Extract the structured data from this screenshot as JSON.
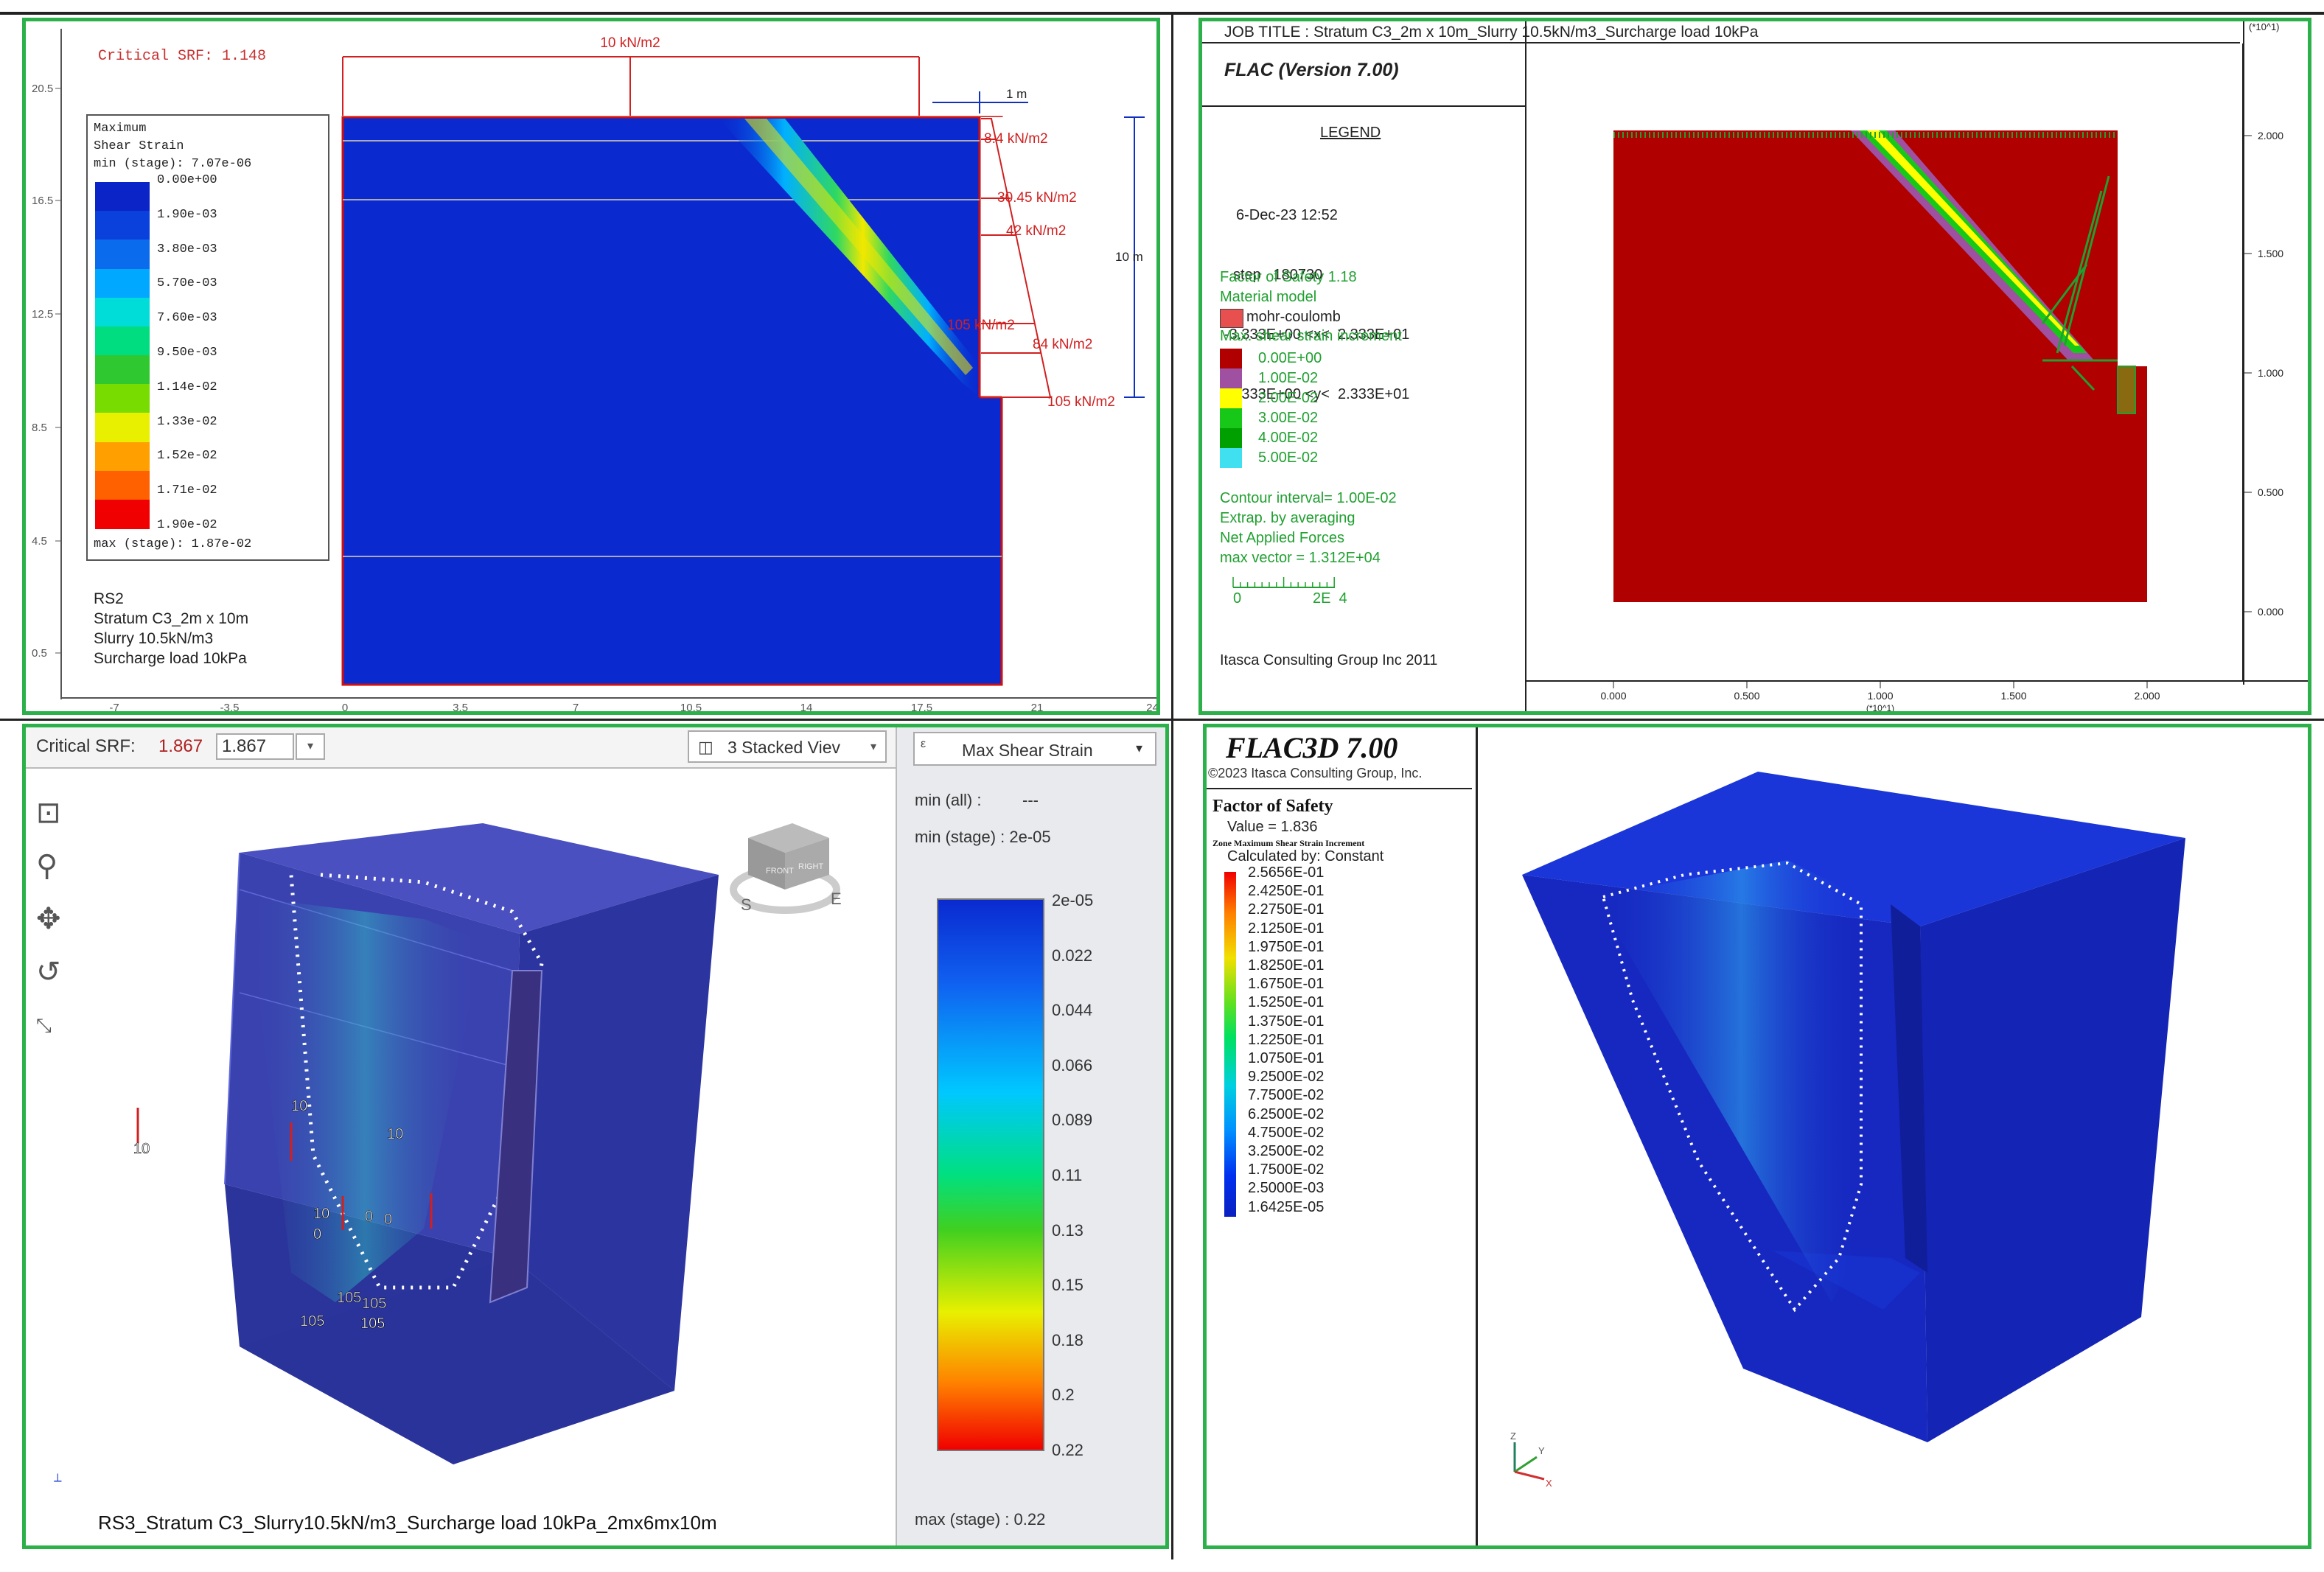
{
  "p1": {
    "critical_srf": "Critical SRF: 1.148",
    "surcharge_label": "10 kN/m2",
    "offset_label": "1 m",
    "height_label": "10 m",
    "pressure_labels": [
      "8.4 kN/m2",
      "30.45 kN/m2",
      "42 kN/m2",
      "105 kN/m2",
      "84 kN/m2",
      "105 kN/m2"
    ],
    "legend_header": [
      "Maximum",
      "Shear Strain",
      "min (stage): 7.07e-06"
    ],
    "legend_values": [
      "0.00e+00",
      "1.90e-03",
      "3.80e-03",
      "5.70e-03",
      "7.60e-03",
      "9.50e-03",
      "1.14e-02",
      "1.33e-02",
      "1.52e-02",
      "1.71e-02",
      "1.90e-02"
    ],
    "legend_colors": [
      "#0a24c8",
      "#0a40dc",
      "#0a6cec",
      "#00a8ff",
      "#00dcd8",
      "#00dc80",
      "#30c830",
      "#78dc00",
      "#e8f000",
      "#ffa000",
      "#ff6000",
      "#f00000"
    ],
    "legend_footer": "max (stage): 1.87e-02",
    "info": [
      "RS2",
      "Stratum C3_2m x 10m",
      "Slurry 10.5kN/m3",
      "Surcharge load 10kPa"
    ],
    "y_ticks": [
      "20.5",
      "16.5",
      "12.5",
      "8.5",
      "4.5",
      "0.5"
    ],
    "x_ticks": [
      "-7",
      "-3.5",
      "0",
      "3.5",
      "7",
      "10.5",
      "14",
      "17.5",
      "21",
      "24"
    ]
  },
  "p2": {
    "job_title": "JOB TITLE : Stratum C3_2m x 10m_Slurry 10.5kN/m3_Surcharge load 10kPa",
    "version": "FLAC (Version 7.00)",
    "legend_title": "LEGEND",
    "date": "6-Dec-23 12:52",
    "step": "step   180730",
    "xrange": "-3.333E+00 <x<  2.333E+01",
    "yrange": "-3.333E+00 <y<  2.333E+01",
    "fos": "Factor of Safety  1.18",
    "material_model": "Material model",
    "material_name": "mohr-coulomb",
    "strain_title": "Max. shear strain increment",
    "strain_values": [
      "0.00E+00",
      "1.00E-02",
      "2.00E-02",
      "3.00E-02",
      "4.00E-02",
      "5.00E-02"
    ],
    "strain_colors": [
      "#b00000",
      "#a050a0",
      "#ffff00",
      "#18c818",
      "#00a000",
      "#40e0f0"
    ],
    "contour": "Contour interval=  1.00E-02",
    "extrap": "Extrap. by averaging",
    "net_forces": "Net Applied Forces",
    "max_vector": "max vector =     1.312E+04",
    "scale_zero": "0",
    "scale_max": "2E  4",
    "company": "Itasca Consulting Group Inc 2011",
    "y_ticks": [
      "2.000",
      "1.500",
      "1.000",
      "0.500",
      "0.000"
    ],
    "x_ticks": [
      "0.000",
      "0.500",
      "1.000",
      "1.500",
      "2.000"
    ],
    "exp_label": "(*10^1)"
  },
  "p3": {
    "srf_label": "Critical SRF:",
    "srf_value": "1.867",
    "srf_input": "1.867",
    "view_label": "3 Stacked Viev",
    "strain_select": "Max Shear Strain",
    "min_all": "min (all) :",
    "min_all_val": "---",
    "min_stage": "min (stage) : 2e-05",
    "bar_labels": [
      "2e-05",
      "0.022",
      "0.044",
      "0.066",
      "0.089",
      "0.11",
      "0.13",
      "0.15",
      "0.18",
      "0.2",
      "0.22"
    ],
    "max_stage": "max (stage) : 0.22",
    "caption": "RS3_Stratum C3_Slurry10.5kN/m3_Surcharge load 10kPa_2mx6mx10m",
    "load_labels": [
      "10",
      "10",
      "10",
      "10",
      "0",
      "0",
      "0",
      "105",
      "105",
      "105",
      "105"
    ],
    "cube_faces": [
      "TOP",
      "FRONT",
      "RIGHT"
    ],
    "compass": [
      "S",
      "E"
    ]
  },
  "p4": {
    "title": "FLAC3D 7.00",
    "copyright": "©2023 Itasca Consulting Group, Inc.",
    "fos_title": "Factor of Safety",
    "fos_value": "Value = 1.836",
    "zone_title": "Zone Maximum Shear Strain Increment",
    "calc": "Calculated by: Constant",
    "values": [
      "2.5656E-01",
      "2.4250E-01",
      "2.2750E-01",
      "2.1250E-01",
      "1.9750E-01",
      "1.8250E-01",
      "1.6750E-01",
      "1.5250E-01",
      "1.3750E-01",
      "1.2250E-01",
      "1.0750E-01",
      "9.2500E-02",
      "7.7500E-02",
      "6.2500E-02",
      "4.7500E-02",
      "3.2500E-02",
      "1.7500E-02",
      "2.5000E-03",
      "1.6425E-05"
    ],
    "axes": [
      "Z",
      "Y",
      "X"
    ]
  }
}
